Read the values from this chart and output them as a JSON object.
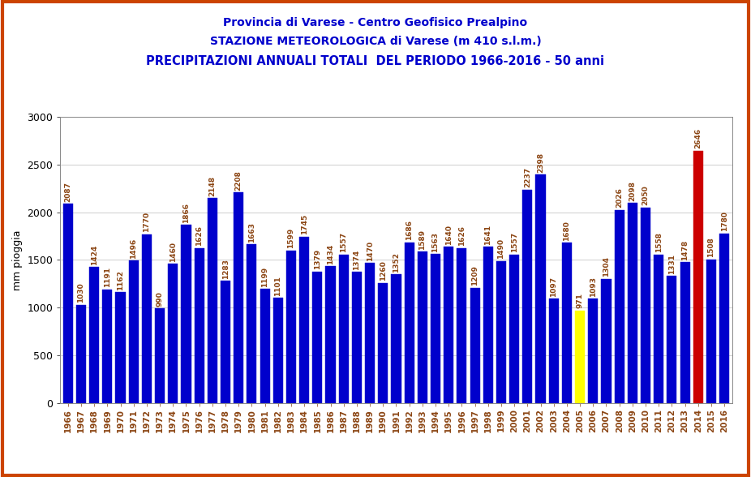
{
  "title_line1": "Provincia di Varese - Centro Geofisico Prealpino",
  "title_line2": "STAZIONE METEOROLOGICA di Varese (m 410 s.l.m.)",
  "title_line3": "PRECIPITAZIONI ANNUALI TOTALI  DEL PERIODO 1966-2016 - 50 anni",
  "ylabel": "mm pioggia",
  "years": [
    1966,
    1967,
    1968,
    1969,
    1970,
    1971,
    1972,
    1973,
    1974,
    1975,
    1976,
    1977,
    1978,
    1979,
    1980,
    1981,
    1982,
    1983,
    1984,
    1985,
    1986,
    1987,
    1988,
    1989,
    1990,
    1991,
    1992,
    1993,
    1994,
    1995,
    1996,
    1997,
    1998,
    1999,
    2000,
    2001,
    2002,
    2003,
    2004,
    2005,
    2006,
    2007,
    2008,
    2009,
    2010,
    2011,
    2012,
    2013,
    2014,
    2015,
    2016
  ],
  "values": [
    2087,
    1030,
    1424,
    1191,
    1162,
    1496,
    1770,
    990,
    1460,
    1866,
    1626,
    2148,
    1283,
    2208,
    1663,
    1199,
    1101,
    1599,
    1745,
    1379,
    1434,
    1557,
    1374,
    1470,
    1260,
    1352,
    1686,
    1589,
    1563,
    1640,
    1626,
    1209,
    1641,
    1490,
    1557,
    2237,
    2398,
    1097,
    1680,
    971,
    1093,
    1304,
    2026,
    2098,
    2050,
    1558,
    1331,
    1478,
    2646,
    1508,
    1780
  ],
  "colors": [
    "blue",
    "blue",
    "blue",
    "blue",
    "blue",
    "blue",
    "blue",
    "blue",
    "blue",
    "blue",
    "blue",
    "blue",
    "blue",
    "blue",
    "blue",
    "blue",
    "blue",
    "blue",
    "blue",
    "blue",
    "blue",
    "blue",
    "blue",
    "blue",
    "blue",
    "blue",
    "blue",
    "blue",
    "blue",
    "blue",
    "blue",
    "blue",
    "blue",
    "blue",
    "blue",
    "blue",
    "blue",
    "blue",
    "blue",
    "yellow",
    "blue",
    "blue",
    "blue",
    "blue",
    "blue",
    "blue",
    "blue",
    "blue",
    "red",
    "blue",
    "blue"
  ],
  "ylim": [
    0,
    3000
  ],
  "yticks": [
    0,
    500,
    1000,
    1500,
    2000,
    2500,
    3000
  ],
  "bg_color": "#ffffff",
  "title_color": "#0000cc",
  "label_color": "#8B4513",
  "label_fontsize": 6.5,
  "tick_color": "#8B4513",
  "tick_fontsize": 7.5,
  "border_color": "#cc4400",
  "plot_bg": "#ffffff",
  "bar_blue": "#0000cc",
  "bar_yellow": "#ffff00",
  "bar_red": "#cc0000",
  "grid_color": "#aaaaaa",
  "ylabel_fontsize": 9,
  "ytick_fontsize": 9
}
